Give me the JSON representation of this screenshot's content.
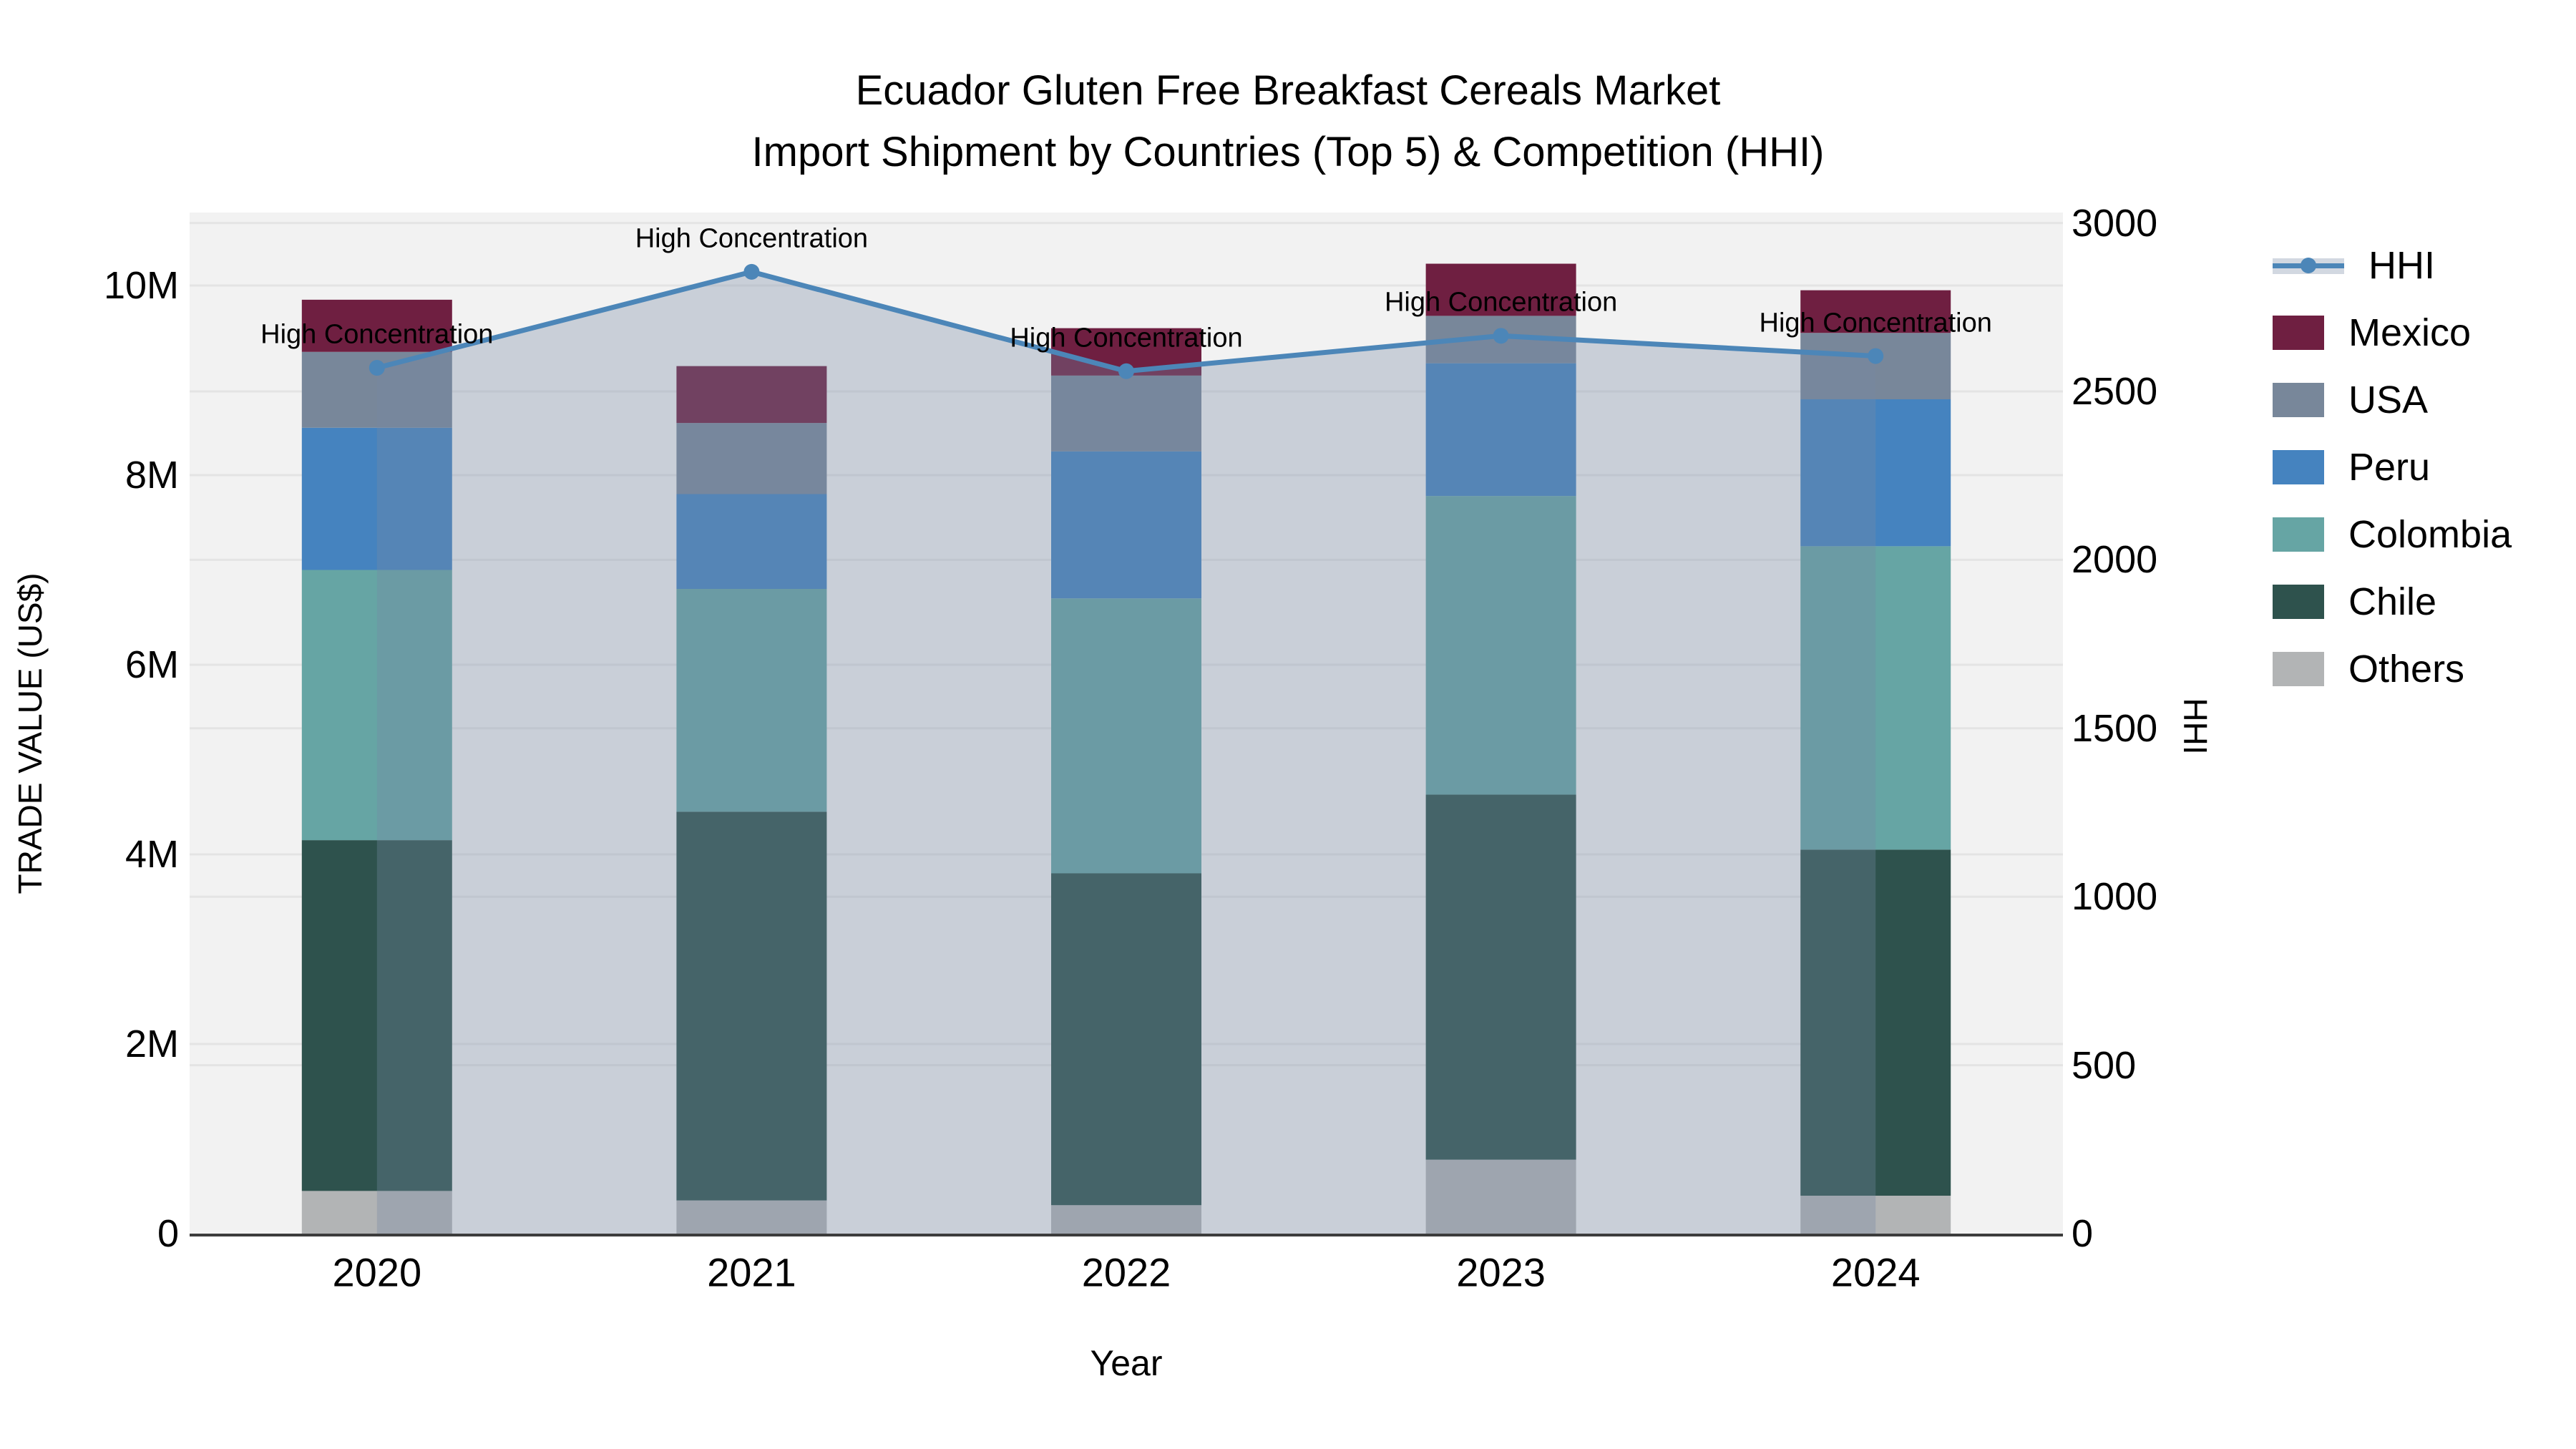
{
  "title": {
    "line1": "Ecuador Gluten Free Breakfast Cereals Market",
    "line2": "Import Shipment by Countries (Top 5) & Competition (HHI)"
  },
  "axes": {
    "x": {
      "label": "Year",
      "tick_labels": [
        "2020",
        "2021",
        "2022",
        "2023",
        "2024"
      ]
    },
    "y_left": {
      "label": "TRADE VALUE (US$)",
      "tick_labels": [
        "0",
        "2M",
        "4M",
        "6M",
        "8M",
        "10M"
      ],
      "tick_values": [
        0,
        2,
        4,
        6,
        8,
        10
      ]
    },
    "y_right": {
      "label": "HHI",
      "tick_labels": [
        "0",
        "500",
        "1000",
        "1500",
        "2000",
        "2500",
        "3000"
      ],
      "tick_values": [
        0,
        500,
        1000,
        1500,
        2000,
        2500,
        3000
      ]
    }
  },
  "legend": [
    {
      "label": "HHI",
      "type": "line",
      "color": "#4C86B8"
    },
    {
      "label": "Mexico",
      "type": "swatch",
      "color": "#6F1F41"
    },
    {
      "label": "USA",
      "type": "swatch",
      "color": "#78879A"
    },
    {
      "label": "Peru",
      "type": "swatch",
      "color": "#4583BF"
    },
    {
      "label": "Colombia",
      "type": "swatch",
      "color": "#66A5A4"
    },
    {
      "label": "Chile",
      "type": "swatch",
      "color": "#2E524D"
    },
    {
      "label": "Others",
      "type": "swatch",
      "color": "#B2B4B5"
    }
  ],
  "colors": {
    "plot_background": "#F2F2F2",
    "gridline": "#E4E4E4",
    "axis_line": "#3C3C3C",
    "hhi_line": "#4C86B8",
    "hhi_area_fill": "rgba(118,136,164,0.33)",
    "text": "#000000"
  },
  "chart_data": {
    "type": "combo: stacked-bar + line-area",
    "categories": [
      "2020",
      "2021",
      "2022",
      "2023",
      "2024"
    ],
    "bar_value_unit": "million US$",
    "bar_series": [
      {
        "name": "Others",
        "color": "#B2B4B5",
        "values": [
          0.45,
          0.35,
          0.3,
          0.78,
          0.4
        ]
      },
      {
        "name": "Chile",
        "color": "#2E524D",
        "values": [
          3.7,
          4.1,
          3.5,
          3.85,
          3.65
        ]
      },
      {
        "name": "Colombia",
        "color": "#66A5A4",
        "values": [
          2.85,
          2.35,
          2.9,
          3.15,
          3.2
        ]
      },
      {
        "name": "Peru",
        "color": "#4583BF",
        "values": [
          1.5,
          1.0,
          1.55,
          1.4,
          1.55
        ]
      },
      {
        "name": "USA",
        "color": "#78879A",
        "values": [
          0.8,
          0.75,
          0.8,
          0.5,
          0.7
        ]
      },
      {
        "name": "Mexico",
        "color": "#6F1F41",
        "values": [
          0.55,
          0.6,
          0.5,
          0.55,
          0.45
        ]
      }
    ],
    "bar_totals": [
      9.85,
      9.15,
      9.55,
      10.23,
      9.95
    ],
    "line_series": {
      "name": "HHI",
      "values": [
        2570,
        2855,
        2560,
        2665,
        2605
      ],
      "axis": "right",
      "area_fill": true
    },
    "annotation_text": "High Concentration",
    "title": "Ecuador Gluten Free Breakfast Cereals Market — Import Shipment by Countries (Top 5) & Competition (HHI)",
    "xlabel": "Year",
    "ylabel_left": "TRADE VALUE (US$)",
    "ylabel_right": "HHI",
    "ylim_left_millions": [
      0,
      10.77
    ],
    "ylim_right": [
      0,
      3030
    ],
    "grid": true,
    "legend_position": "right"
  }
}
